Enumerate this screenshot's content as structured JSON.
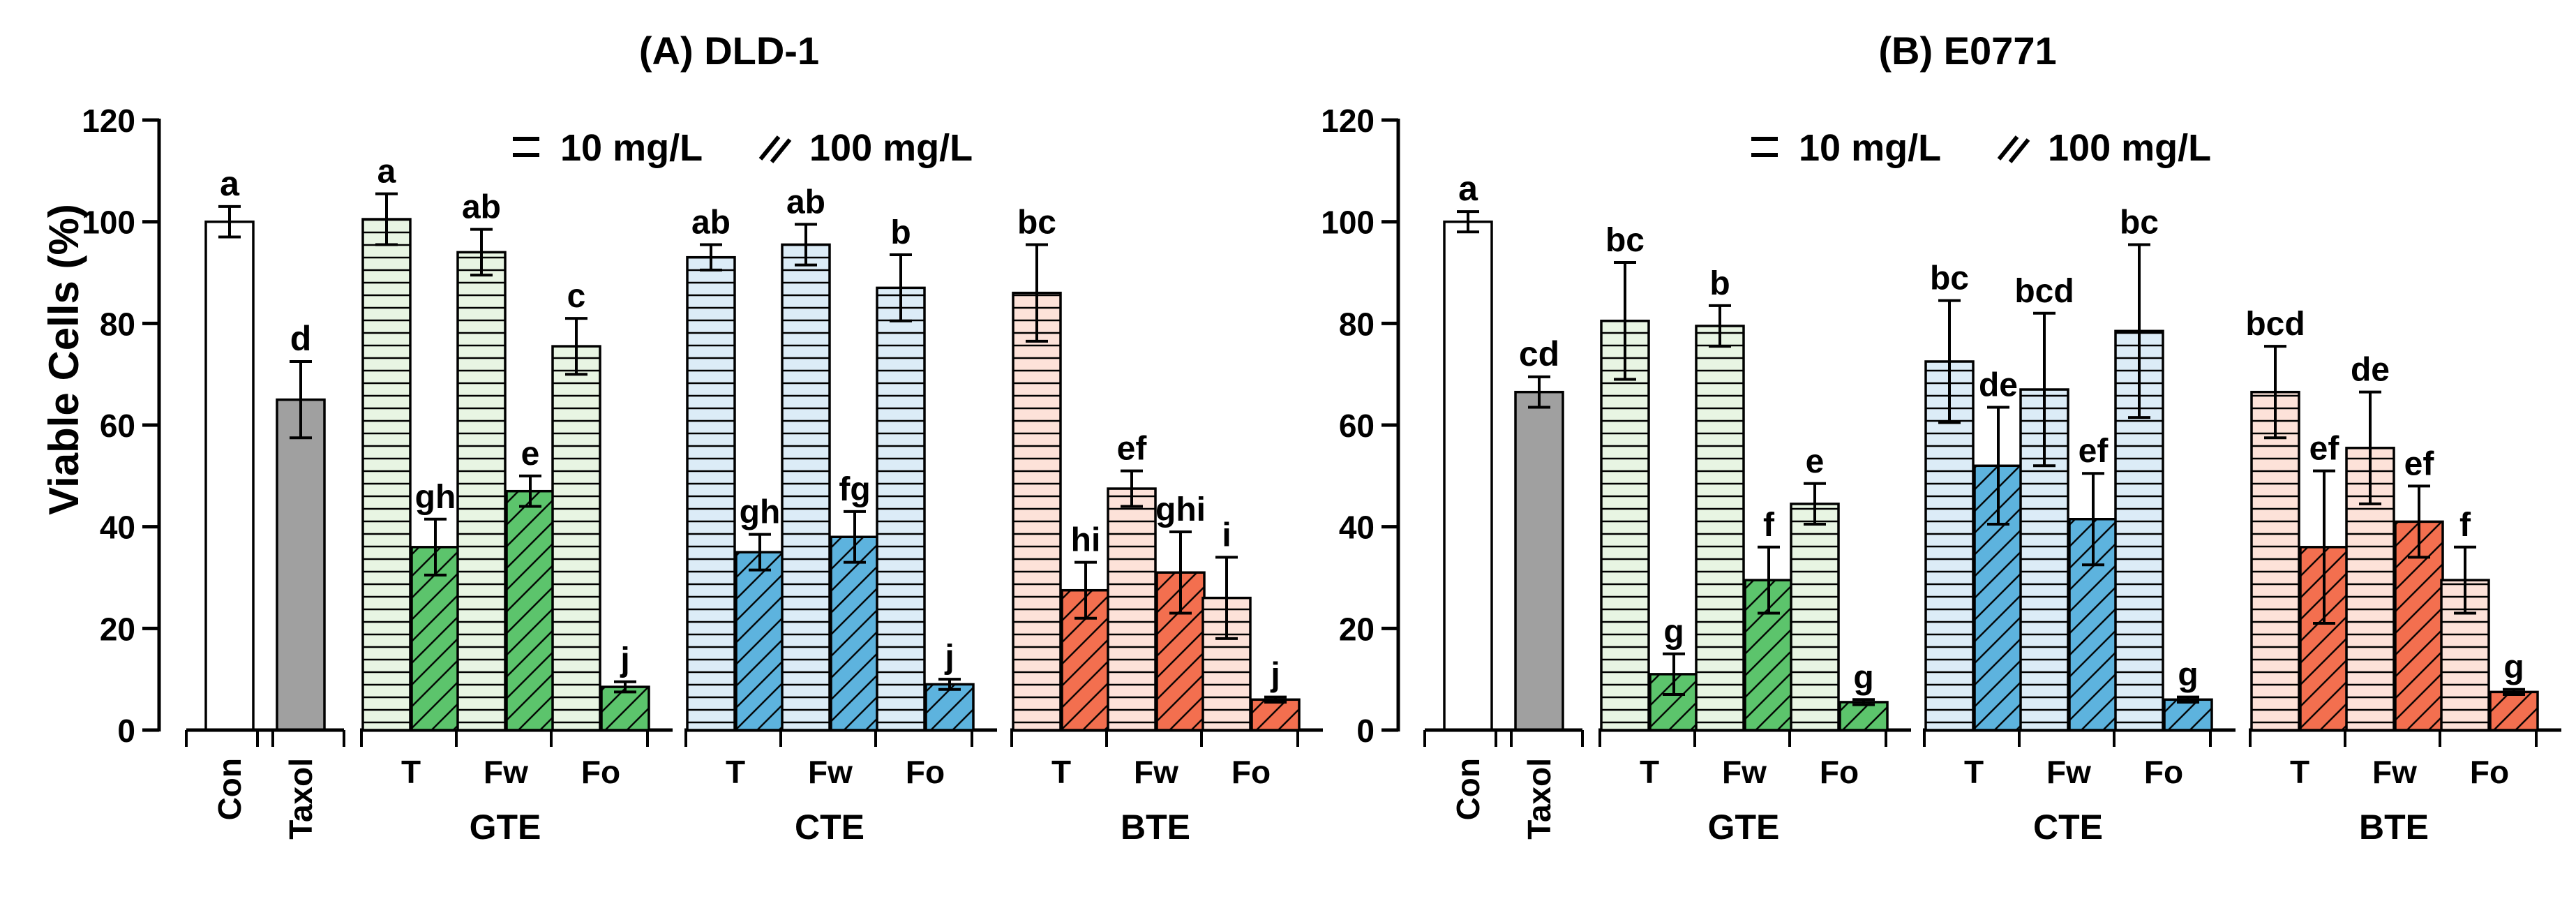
{
  "figure": {
    "y_axis_label": "Viable Cells (%)",
    "legend": {
      "low": "10 mg/L",
      "high": "100 mg/L"
    }
  },
  "colors": {
    "green_light": "#e8f5e3",
    "green_dark": "#5cc46c",
    "blue_light": "#dcecf7",
    "blue_dark": "#5db3de",
    "red_light": "#fde2d9",
    "red_dark": "#f36f4f",
    "control": "#ffffff",
    "taxol": "#a0a0a0"
  },
  "chart_data": [
    {
      "type": "bar",
      "title": "(A) DLD-1",
      "ylabel": "Viable Cells (%)",
      "ylim": [
        0,
        120
      ],
      "yticks": [
        0,
        20,
        40,
        60,
        80,
        100,
        120
      ],
      "legend": [
        "10 mg/L",
        "100 mg/L"
      ],
      "controls": [
        {
          "category": "Con",
          "value": 100,
          "error": 3,
          "letter": "a",
          "fill": "control"
        },
        {
          "category": "Taxol",
          "value": 65,
          "error": 7.5,
          "letter": "d",
          "fill": "taxol"
        }
      ],
      "groups": [
        {
          "name": "GTE",
          "light": "green_light",
          "dark": "green_dark",
          "fractions": [
            {
              "category": "T",
              "low": {
                "value": 100.5,
                "error": 5,
                "letter": "a"
              },
              "high": {
                "value": 36,
                "error": 5.5,
                "letter": "gh"
              }
            },
            {
              "category": "Fw",
              "low": {
                "value": 94,
                "error": 4.5,
                "letter": "ab"
              },
              "high": {
                "value": 47,
                "error": 3,
                "letter": "e"
              }
            },
            {
              "category": "Fo",
              "low": {
                "value": 75.5,
                "error": 5.5,
                "letter": "c"
              },
              "high": {
                "value": 8.5,
                "error": 1,
                "letter": "j"
              }
            }
          ]
        },
        {
          "name": "CTE",
          "light": "blue_light",
          "dark": "blue_dark",
          "fractions": [
            {
              "category": "T",
              "low": {
                "value": 93,
                "error": 2.5,
                "letter": "ab"
              },
              "high": {
                "value": 35,
                "error": 3.5,
                "letter": "gh"
              }
            },
            {
              "category": "Fw",
              "low": {
                "value": 95.5,
                "error": 4,
                "letter": "ab"
              },
              "high": {
                "value": 38,
                "error": 5,
                "letter": "fg"
              }
            },
            {
              "category": "Fo",
              "low": {
                "value": 87,
                "error": 6.5,
                "letter": "b"
              },
              "high": {
                "value": 9,
                "error": 1,
                "letter": "j"
              }
            }
          ]
        },
        {
          "name": "BTE",
          "light": "red_light",
          "dark": "red_dark",
          "fractions": [
            {
              "category": "T",
              "low": {
                "value": 86,
                "error": 9.5,
                "letter": "bc"
              },
              "high": {
                "value": 27.5,
                "error": 5.5,
                "letter": "hi"
              }
            },
            {
              "category": "Fw",
              "low": {
                "value": 47.5,
                "error": 3.5,
                "letter": "ef"
              },
              "high": {
                "value": 31,
                "error": 8,
                "letter": "ghi"
              }
            },
            {
              "category": "Fo",
              "low": {
                "value": 26,
                "error": 8,
                "letter": "i"
              },
              "high": {
                "value": 6,
                "error": 0.5,
                "letter": "j"
              }
            }
          ]
        }
      ]
    },
    {
      "type": "bar",
      "title": "(B) E0771",
      "ylabel": "",
      "ylim": [
        0,
        120
      ],
      "yticks": [
        0,
        20,
        40,
        60,
        80,
        100,
        120
      ],
      "legend": [
        "10 mg/L",
        "100 mg/L"
      ],
      "controls": [
        {
          "category": "Con",
          "value": 100,
          "error": 2,
          "letter": "a",
          "fill": "control"
        },
        {
          "category": "Taxol",
          "value": 66.5,
          "error": 3,
          "letter": "cd",
          "fill": "taxol"
        }
      ],
      "groups": [
        {
          "name": "GTE",
          "light": "green_light",
          "dark": "green_dark",
          "fractions": [
            {
              "category": "T",
              "low": {
                "value": 80.5,
                "error": 11.5,
                "letter": "bc"
              },
              "high": {
                "value": 11,
                "error": 4,
                "letter": "g"
              }
            },
            {
              "category": "Fw",
              "low": {
                "value": 79.5,
                "error": 4,
                "letter": "b"
              },
              "high": {
                "value": 29.5,
                "error": 6.5,
                "letter": "f"
              }
            },
            {
              "category": "Fo",
              "low": {
                "value": 44.5,
                "error": 4,
                "letter": "e"
              },
              "high": {
                "value": 5.5,
                "error": 0.5,
                "letter": "g"
              }
            }
          ]
        },
        {
          "name": "CTE",
          "light": "blue_light",
          "dark": "blue_dark",
          "fractions": [
            {
              "category": "T",
              "low": {
                "value": 72.5,
                "error": 12,
                "letter": "bc"
              },
              "high": {
                "value": 52,
                "error": 11.5,
                "letter": "de"
              }
            },
            {
              "category": "Fw",
              "low": {
                "value": 67,
                "error": 15,
                "letter": "bcd"
              },
              "high": {
                "value": 41.5,
                "error": 9,
                "letter": "ef"
              }
            },
            {
              "category": "Fo",
              "low": {
                "value": 78.5,
                "error": 17,
                "letter": "bc"
              },
              "high": {
                "value": 6,
                "error": 0.5,
                "letter": "g"
              }
            }
          ]
        },
        {
          "name": "BTE",
          "light": "red_light",
          "dark": "red_dark",
          "fractions": [
            {
              "category": "T",
              "low": {
                "value": 66.5,
                "error": 9,
                "letter": "bcd"
              },
              "high": {
                "value": 36,
                "error": 15,
                "letter": "ef"
              }
            },
            {
              "category": "Fw",
              "low": {
                "value": 55.5,
                "error": 11,
                "letter": "de"
              },
              "high": {
                "value": 41,
                "error": 7,
                "letter": "ef"
              }
            },
            {
              "category": "Fo",
              "low": {
                "value": 29.5,
                "error": 6.5,
                "letter": "f"
              },
              "high": {
                "value": 7.5,
                "error": 0.5,
                "letter": "g"
              }
            }
          ]
        }
      ]
    }
  ]
}
